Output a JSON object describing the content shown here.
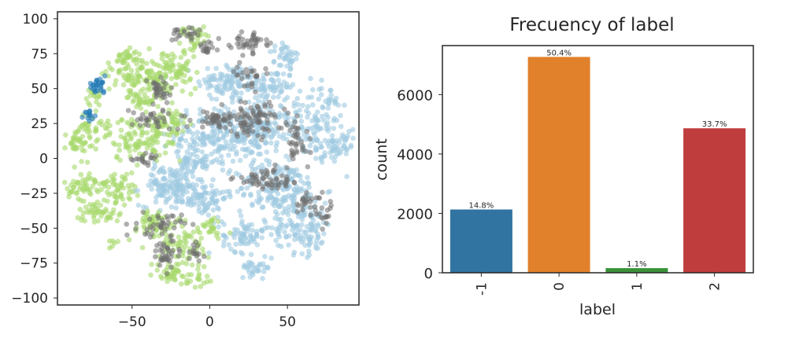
{
  "chart_data": [
    {
      "type": "scatter",
      "title": "",
      "xlabel": "",
      "ylabel": "",
      "xlim": [
        -98,
        96
      ],
      "ylim": [
        -105,
        105
      ],
      "x_ticks": [
        -50,
        0,
        50
      ],
      "y_ticks": [
        100,
        75,
        50,
        25,
        0,
        -25,
        -50,
        -75,
        -100
      ],
      "x_tick_labels": [
        "−50",
        "0",
        "50"
      ],
      "y_tick_labels": [
        "100",
        "75",
        "50",
        "25",
        "0",
        "−25",
        "−50",
        "−75",
        "−100"
      ],
      "grid": false,
      "legend": "none",
      "colors": {
        "light_blue": "#9ecae1",
        "light_green": "#a6d96a",
        "gray": "#6e6e6e",
        "blue": "#1f78b4"
      },
      "clusters": [
        {
          "color": "gray",
          "cx": -14,
          "cy": 93,
          "sx": 5,
          "sy": 5,
          "n": 40
        },
        {
          "color": "light_green",
          "cx": -10,
          "cy": 90,
          "sx": 6,
          "sy": 5,
          "n": 40
        },
        {
          "color": "gray",
          "cx": 25,
          "cy": 84,
          "sx": 6,
          "sy": 4,
          "n": 45
        },
        {
          "color": "light_blue",
          "cx": 50,
          "cy": 74,
          "sx": 6,
          "sy": 6,
          "n": 45
        },
        {
          "color": "gray",
          "cx": -2,
          "cy": 78,
          "sx": 3,
          "sy": 3,
          "n": 18
        },
        {
          "color": "light_green",
          "cx": -56,
          "cy": 72,
          "sx": 6,
          "sy": 4,
          "n": 40
        },
        {
          "color": "light_green",
          "cx": -45,
          "cy": 60,
          "sx": 10,
          "sy": 7,
          "n": 90
        },
        {
          "color": "light_green",
          "cx": -24,
          "cy": 61,
          "sx": 8,
          "sy": 9,
          "n": 90
        },
        {
          "color": "gray",
          "cx": -33,
          "cy": 48,
          "sx": 5,
          "sy": 5,
          "n": 35
        },
        {
          "color": "light_green",
          "cx": -44,
          "cy": 43,
          "sx": 5,
          "sy": 4,
          "n": 35
        },
        {
          "color": "blue",
          "cx": -73,
          "cy": 52,
          "sx": 3,
          "sy": 2.5,
          "n": 25
        },
        {
          "color": "light_green",
          "cx": -75,
          "cy": 44,
          "sx": 3,
          "sy": 3,
          "n": 15
        },
        {
          "color": "blue",
          "cx": -77,
          "cy": 31,
          "sx": 2,
          "sy": 1.5,
          "n": 12
        },
        {
          "color": "light_green",
          "cx": -77,
          "cy": 22,
          "sx": 6,
          "sy": 5,
          "n": 40
        },
        {
          "color": "light_green",
          "cx": -86,
          "cy": 12,
          "sx": 5,
          "sy": 6,
          "n": 35
        },
        {
          "color": "light_green",
          "cx": -48,
          "cy": 14,
          "sx": 9,
          "sy": 8,
          "n": 90
        },
        {
          "color": "light_green",
          "cx": -27,
          "cy": 22,
          "sx": 6,
          "sy": 9,
          "n": 70
        },
        {
          "color": "gray",
          "cx": -35,
          "cy": 28,
          "sx": 8,
          "sy": 4,
          "n": 35
        },
        {
          "color": "gray",
          "cx": -42,
          "cy": 0,
          "sx": 6,
          "sy": 2,
          "n": 18
        },
        {
          "color": "light_green",
          "cx": -78,
          "cy": -20,
          "sx": 8,
          "sy": 5,
          "n": 60
        },
        {
          "color": "light_green",
          "cx": -58,
          "cy": -22,
          "sx": 5,
          "sy": 6,
          "n": 45
        },
        {
          "color": "light_green",
          "cx": -72,
          "cy": -38,
          "sx": 7,
          "sy": 4,
          "n": 45
        },
        {
          "color": "light_green",
          "cx": -38,
          "cy": -48,
          "sx": 8,
          "sy": 6,
          "n": 50
        },
        {
          "color": "gray",
          "cx": -32,
          "cy": -48,
          "sx": 7,
          "sy": 4,
          "n": 40
        },
        {
          "color": "light_green",
          "cx": -16,
          "cy": -62,
          "sx": 8,
          "sy": 8,
          "n": 70
        },
        {
          "color": "gray",
          "cx": -28,
          "cy": -68,
          "sx": 5,
          "sy": 6,
          "n": 40
        },
        {
          "color": "light_green",
          "cx": -24,
          "cy": -82,
          "sx": 6,
          "sy": 4,
          "n": 35
        },
        {
          "color": "light_green",
          "cx": -8,
          "cy": -88,
          "sx": 4,
          "sy": 3,
          "n": 15
        },
        {
          "color": "light_green",
          "cx": -62,
          "cy": -60,
          "sx": 2,
          "sy": 2,
          "n": 6
        },
        {
          "color": "light_green",
          "cx": 0,
          "cy": -50,
          "sx": 5,
          "sy": 4,
          "n": 25
        },
        {
          "color": "light_blue",
          "cx": 12,
          "cy": 55,
          "sx": 10,
          "sy": 7,
          "n": 100
        },
        {
          "color": "light_blue",
          "cx": 40,
          "cy": 52,
          "sx": 7,
          "sy": 6,
          "n": 60
        },
        {
          "color": "light_blue",
          "cx": 6,
          "cy": 17,
          "sx": 14,
          "sy": 10,
          "n": 200
        },
        {
          "color": "light_blue",
          "cx": 35,
          "cy": 20,
          "sx": 9,
          "sy": 10,
          "n": 110
        },
        {
          "color": "light_blue",
          "cx": 70,
          "cy": 28,
          "sx": 10,
          "sy": 14,
          "n": 140
        },
        {
          "color": "light_blue",
          "cx": 80,
          "cy": 5,
          "sx": 6,
          "sy": 6,
          "n": 40
        },
        {
          "color": "light_blue",
          "cx": -25,
          "cy": -20,
          "sx": 10,
          "sy": 7,
          "n": 130
        },
        {
          "color": "light_blue",
          "cx": -5,
          "cy": -28,
          "sx": 8,
          "sy": 7,
          "n": 80
        },
        {
          "color": "light_blue",
          "cx": 45,
          "cy": -22,
          "sx": 14,
          "sy": 10,
          "n": 180
        },
        {
          "color": "light_blue",
          "cx": 60,
          "cy": -50,
          "sx": 10,
          "sy": 9,
          "n": 120
        },
        {
          "color": "light_blue",
          "cx": 22,
          "cy": -55,
          "sx": 7,
          "sy": 6,
          "n": 70
        },
        {
          "color": "light_blue",
          "cx": 30,
          "cy": -78,
          "sx": 5,
          "sy": 3,
          "n": 30
        },
        {
          "color": "light_blue",
          "cx": -10,
          "cy": -2,
          "sx": 8,
          "sy": 5,
          "n": 60
        },
        {
          "color": "gray",
          "cx": 28,
          "cy": 28,
          "sx": 10,
          "sy": 6,
          "n": 90
        },
        {
          "color": "gray",
          "cx": 4,
          "cy": 28,
          "sx": 8,
          "sy": 3,
          "n": 45
        },
        {
          "color": "gray",
          "cx": 55,
          "cy": 10,
          "sx": 4,
          "sy": 8,
          "n": 35
        },
        {
          "color": "gray",
          "cx": 40,
          "cy": -15,
          "sx": 12,
          "sy": 4,
          "n": 60
        },
        {
          "color": "gray",
          "cx": 62,
          "cy": -32,
          "sx": 5,
          "sy": 4,
          "n": 25
        },
        {
          "color": "gray",
          "cx": 25,
          "cy": 60,
          "sx": 5,
          "sy": 4,
          "n": 25
        },
        {
          "color": "gray",
          "cx": 75,
          "cy": -40,
          "sx": 3,
          "sy": 4,
          "n": 15
        },
        {
          "color": "gray",
          "cx": -10,
          "cy": -68,
          "sx": 3,
          "sy": 3,
          "n": 15
        }
      ]
    },
    {
      "type": "bar",
      "title": "Frecuency of label",
      "xlabel": "label",
      "ylabel": "count",
      "categories": [
        "-1",
        "0",
        "1",
        "2"
      ],
      "values": [
        2130,
        7270,
        155,
        4865
      ],
      "data_labels": [
        "14.8%",
        "50.4%",
        "1.1%",
        "33.7%"
      ],
      "colors": [
        "#3274a1",
        "#e1812c",
        "#3a923a",
        "#c03d3e"
      ],
      "ylim": [
        0,
        7650
      ],
      "y_ticks": [
        0,
        2000,
        4000,
        6000
      ],
      "y_tick_labels": [
        "0",
        "2000",
        "4000",
        "6000"
      ],
      "grid": false,
      "legend": "none"
    }
  ]
}
